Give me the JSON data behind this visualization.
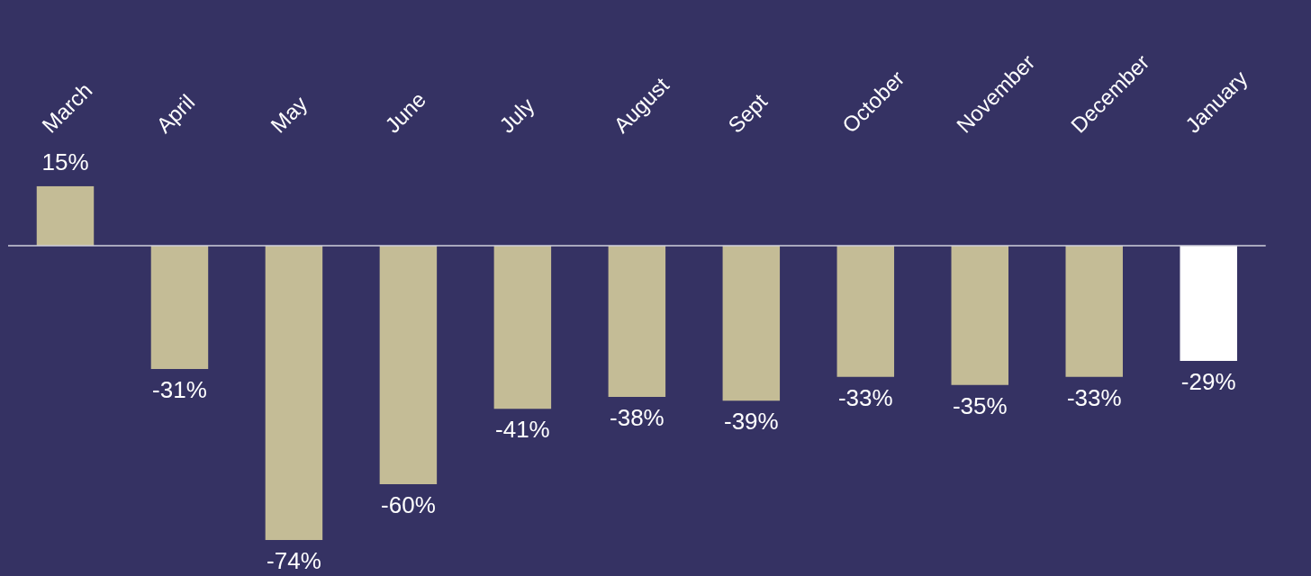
{
  "chart_data": {
    "type": "bar",
    "categories": [
      "March",
      "April",
      "May",
      "June",
      "July",
      "August",
      "Sept",
      "October",
      "November",
      "December",
      "January"
    ],
    "values": [
      15,
      -31,
      -74,
      -60,
      -41,
      -38,
      -39,
      -33,
      -35,
      -33,
      -29
    ],
    "colors": [
      "#c4bc96",
      "#c4bc96",
      "#c4bc96",
      "#c4bc96",
      "#c4bc96",
      "#c4bc96",
      "#c4bc96",
      "#c4bc96",
      "#c4bc96",
      "#c4bc96",
      "#ffffff"
    ],
    "value_labels": [
      "15%",
      "-31%",
      "-74%",
      "-60%",
      "-41%",
      "-38%",
      "-39%",
      "-33%",
      "-35%",
      "-33%",
      "-29%"
    ],
    "legend": false,
    "grid": false
  }
}
